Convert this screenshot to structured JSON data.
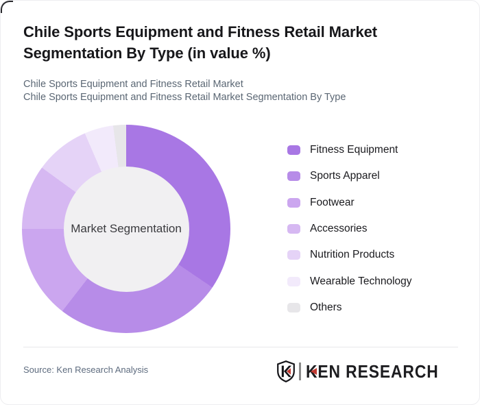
{
  "header": {
    "title": "Chile Sports Equipment and Fitness Retail Market Segmentation By Type (in value %)",
    "subtitle_lines": [
      "Chile Sports Equipment and Fitness Retail Market",
      "Chile Sports Equipment and Fitness Retail Market Segmentation By Type"
    ]
  },
  "chart_data": {
    "type": "pie",
    "subtype": "donut",
    "title": "Chile Sports Equipment and Fitness Retail Market Segmentation By Type (in value %)",
    "center_label": "Market Segmentation",
    "categories": [
      "Fitness Equipment",
      "Sports Apparel",
      "Footwear",
      "Accessories",
      "Nutrition Products",
      "Wearable Technology",
      "Others"
    ],
    "values": [
      34.5,
      26,
      14.5,
      10,
      8.5,
      4.5,
      2
    ],
    "unit": "%",
    "colors": [
      "#a877e4",
      "#b78ce8",
      "#cba6ef",
      "#d6b8f2",
      "#e5d3f7",
      "#f2eafb",
      "#e7e6e9"
    ],
    "hole_color": "#f1f0f2",
    "start_angle_deg": 0,
    "direction": "clockwise",
    "legend_position": "right",
    "data_labels": false
  },
  "footer": {
    "source": "Source: Ken Research Analysis",
    "logo": {
      "shield_letter": "K",
      "brand": "KEN RESEARCH",
      "accent_color": "#c23b33"
    }
  }
}
